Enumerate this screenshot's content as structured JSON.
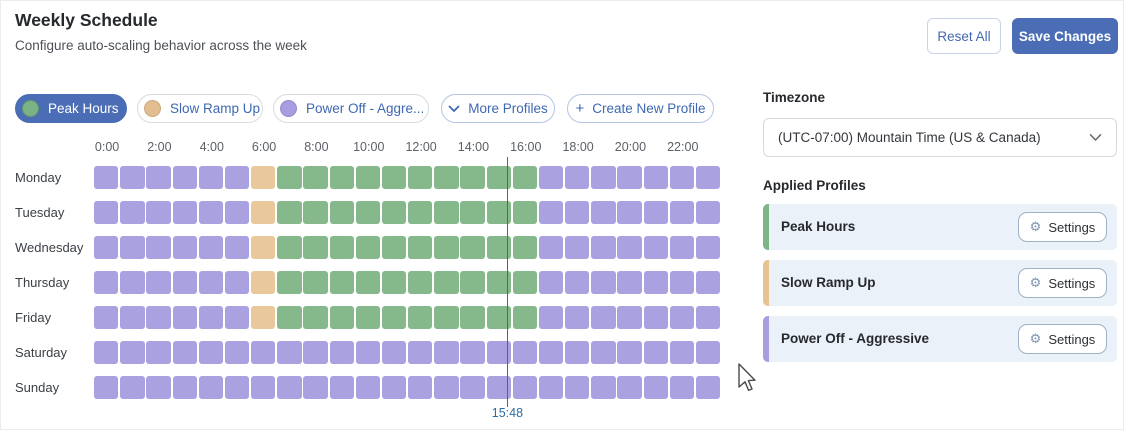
{
  "header": {
    "title": "Weekly Schedule",
    "subtitle": "Configure auto-scaling behavior across the week",
    "reset_label": "Reset All",
    "save_label": "Save Changes"
  },
  "accent_color": "#4a6db5",
  "profiles_bar": {
    "chips": [
      {
        "label": "Peak Hours",
        "dot_color": "#7db287",
        "selected": true
      },
      {
        "label": "Slow Ramp Up",
        "dot_color": "#e2bd8f",
        "selected": false
      },
      {
        "label": "Power Off - Aggre...",
        "dot_color": "#a99ce0",
        "selected": false
      }
    ],
    "more_label": "More Profiles",
    "create_label": "Create New Profile"
  },
  "schedule": {
    "hour_labels": [
      "0:00",
      "2:00",
      "4:00",
      "6:00",
      "8:00",
      "10:00",
      "12:00",
      "14:00",
      "16:00",
      "18:00",
      "20:00",
      "22:00"
    ],
    "profile_colors": {
      "peak": "#85b88b",
      "ramp": "#e9c89b",
      "off": "#aaa1e1"
    },
    "days": [
      {
        "label": "Monday",
        "segments": [
          [
            "off",
            0,
            6
          ],
          [
            "ramp",
            6,
            7
          ],
          [
            "peak",
            7,
            17
          ],
          [
            "off",
            17,
            24
          ]
        ]
      },
      {
        "label": "Tuesday",
        "segments": [
          [
            "off",
            0,
            6
          ],
          [
            "ramp",
            6,
            7
          ],
          [
            "peak",
            7,
            17
          ],
          [
            "off",
            17,
            24
          ]
        ]
      },
      {
        "label": "Wednesday",
        "segments": [
          [
            "off",
            0,
            6
          ],
          [
            "ramp",
            6,
            7
          ],
          [
            "peak",
            7,
            17
          ],
          [
            "off",
            17,
            24
          ]
        ]
      },
      {
        "label": "Thursday",
        "segments": [
          [
            "off",
            0,
            6
          ],
          [
            "ramp",
            6,
            7
          ],
          [
            "peak",
            7,
            17
          ],
          [
            "off",
            17,
            24
          ]
        ]
      },
      {
        "label": "Friday",
        "segments": [
          [
            "off",
            0,
            6
          ],
          [
            "ramp",
            6,
            7
          ],
          [
            "peak",
            7,
            17
          ],
          [
            "off",
            17,
            24
          ]
        ]
      },
      {
        "label": "Saturday",
        "segments": [
          [
            "off",
            0,
            24
          ]
        ]
      },
      {
        "label": "Sunday",
        "segments": [
          [
            "off",
            0,
            24
          ]
        ]
      }
    ],
    "current_time": {
      "label": "15:48",
      "hour": 15.8
    }
  },
  "sidebar": {
    "timezone_label": "Timezone",
    "timezone_value": "(UTC-07:00) Mountain Time (US & Canada)",
    "applied_profiles_title": "Applied Profiles",
    "cards": [
      {
        "name": "Peak Hours",
        "bar_color": "#7fb489",
        "settings_label": "Settings"
      },
      {
        "name": "Slow Ramp Up",
        "bar_color": "#e7c391",
        "settings_label": "Settings"
      },
      {
        "name": "Power Off - Aggressive",
        "bar_color": "#a89de0",
        "settings_label": "Settings"
      }
    ]
  }
}
